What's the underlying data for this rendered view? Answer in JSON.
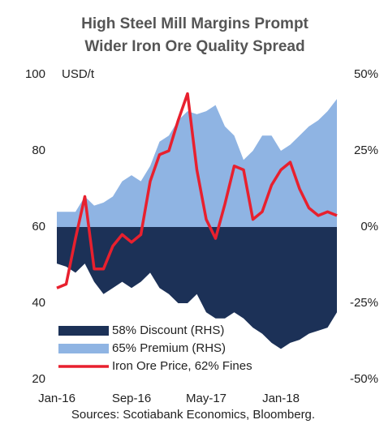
{
  "chart_data": {
    "type": "area_line",
    "title": [
      "High Steel Mill Margins Prompt",
      "Wider Iron Ore Quality Spread"
    ],
    "ylabel": "USD/t",
    "source": "Sources: Scotiabank Economics, Bloomberg.",
    "categories": [
      "Jan-16",
      null,
      null,
      null,
      null,
      null,
      null,
      null,
      "Sep-16",
      null,
      null,
      null,
      null,
      null,
      null,
      null,
      "May-17",
      null,
      null,
      null,
      null,
      null,
      null,
      null,
      "Jan-18",
      null,
      null,
      null,
      null,
      null,
      null
    ],
    "ylim": [
      20,
      100
    ],
    "yticks": [
      20,
      40,
      60,
      80,
      100
    ],
    "y2lim": [
      -50,
      50
    ],
    "y2ticks": [
      {
        "value": -50,
        "label": "-50%"
      },
      {
        "value": -25,
        "label": "-25%"
      },
      {
        "value": 0,
        "label": "0%"
      },
      {
        "value": 25,
        "label": "25%"
      },
      {
        "value": 50,
        "label": "50%"
      }
    ],
    "legend": "lower left",
    "series": [
      {
        "name": "58% Discount (RHS)",
        "color": "#1c3157",
        "axis": "y2",
        "kind": "area",
        "values": [
          -12,
          -13,
          -15,
          -12,
          -18,
          -22,
          -20,
          -18,
          -20,
          -18,
          -15,
          -20,
          -22,
          -25,
          -25,
          -22,
          -28,
          -30,
          -30,
          -28,
          -30,
          -33,
          -35,
          -38,
          -40,
          -38,
          -37,
          -35,
          -34,
          -33,
          -28
        ]
      },
      {
        "name": "65% Premium (RHS)",
        "color": "#8fb4e3",
        "axis": "y2",
        "kind": "area",
        "values": [
          5,
          5,
          5,
          10,
          7,
          8,
          10,
          15,
          17,
          15,
          20,
          28,
          30,
          35,
          38,
          37,
          38,
          40,
          33,
          30,
          22,
          25,
          30,
          30,
          25,
          27,
          30,
          33,
          35,
          38,
          42
        ]
      },
      {
        "name": "Iron Ore Price, 62% Fines",
        "color": "#e8202e",
        "kind": "line",
        "values": [
          44,
          45,
          57,
          68,
          49,
          49,
          55,
          58,
          56,
          58,
          72,
          79,
          80,
          88,
          95,
          75,
          62,
          57,
          66,
          76,
          75,
          62,
          64,
          71,
          75,
          77,
          70,
          65,
          63,
          64,
          63
        ]
      }
    ]
  }
}
